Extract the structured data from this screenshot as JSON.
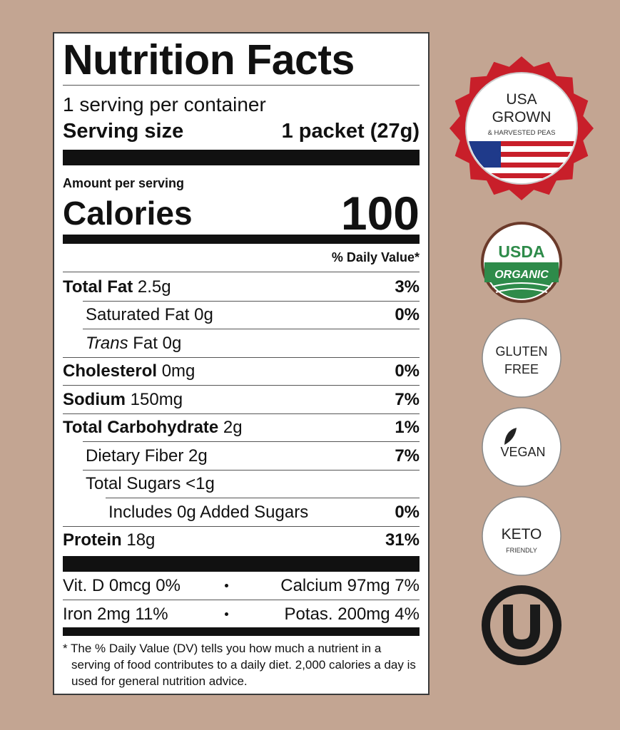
{
  "label": {
    "title": "Nutrition Facts",
    "servings": "1 serving per container",
    "serving_size": {
      "label": "Serving size",
      "value": "1 packet (27g)"
    },
    "amount_per_serving": "Amount per serving",
    "calories": {
      "label": "Calories",
      "value": 100
    },
    "daily_value_header": "% Daily Value*",
    "nutrients": [
      {
        "name": "Total Fat",
        "amount": "2.5g",
        "dv": "3%",
        "sub": [
          {
            "name": "Saturated Fat",
            "amount": "0g",
            "dv": "0%"
          },
          {
            "name_italic": "Trans",
            "name": "Fat",
            "amount": "0g"
          }
        ]
      },
      {
        "name": "Cholesterol",
        "amount": "0mg",
        "dv": "0%"
      },
      {
        "name": "Sodium",
        "amount": "150mg",
        "dv": "7%"
      },
      {
        "name": "Total Carbohydrate",
        "amount": "2g",
        "dv": "1%",
        "sub": [
          {
            "name": "Dietary Fiber",
            "amount": "2g",
            "dv": "7%"
          },
          {
            "name": "Total Sugars",
            "amount": "<1g",
            "sub": [
              {
                "name": "Includes 0g Added Sugars",
                "dv": "0%"
              }
            ]
          }
        ]
      },
      {
        "name": "Protein",
        "amount": "18g",
        "dv": "31%"
      }
    ],
    "micronutrients": [
      [
        "Vit. D 0mcg 0%",
        "Calcium 97mg 7%"
      ],
      [
        "Iron 2mg 11%",
        "Potas. 200mg 4%"
      ]
    ],
    "footnote": "* The % Daily Value (DV) tells you how much a nutrient in a serving of food contributes to a daily diet. 2,000 calories a day is used for general nutrition advice."
  },
  "badges": {
    "usa": {
      "line1": "USA",
      "line2": "GROWN",
      "line3": "& HARVESTED PEAS"
    },
    "usda": {
      "line1": "USDA",
      "line2": "ORGANIC"
    },
    "gluten_free": {
      "line1": "GLUTEN",
      "line2": "FREE"
    },
    "vegan": "VEGAN",
    "keto": {
      "line1": "KETO",
      "line2": "FRIENDLY"
    }
  }
}
